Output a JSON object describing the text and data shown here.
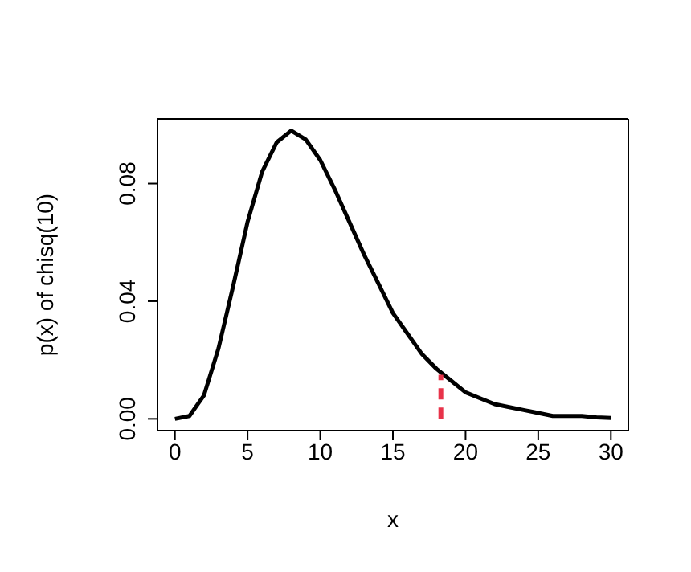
{
  "chart_data": {
    "type": "line",
    "xlabel": "x",
    "ylabel": "p(x) of chisq(10)",
    "x": [
      0,
      1,
      2,
      3,
      4,
      5,
      6,
      7,
      8,
      9,
      10,
      11,
      12,
      13,
      14,
      15,
      16,
      17,
      18,
      19,
      20,
      21,
      22,
      23,
      24,
      25,
      26,
      27,
      28,
      29,
      30
    ],
    "series": [
      {
        "color": "#000000",
        "values": [
          0,
          0.001,
          0.008,
          0.024,
          0.045,
          0.067,
          0.084,
          0.094,
          0.098,
          0.095,
          0.088,
          0.078,
          0.067,
          0.056,
          0.046,
          0.036,
          0.029,
          0.022,
          0.017,
          0.013,
          0.009,
          0.007,
          0.005,
          0.004,
          0.003,
          0.002,
          0.001,
          0.001,
          0.001,
          0.0005,
          0.0003
        ]
      },
      {
        "type": "line",
        "x": [
          18.3,
          18.3
        ],
        "values": [
          0,
          0.015
        ],
        "color": "#e8334a",
        "line_style": "dashed"
      }
    ],
    "xlim": [
      -1.2,
      31.2
    ],
    "ylim": [
      -0.004,
      0.102
    ],
    "xticks": [
      0,
      5,
      10,
      15,
      20,
      25,
      30
    ],
    "yticks": [
      {
        "value": 0,
        "label": "0.00"
      },
      {
        "value": 0.04,
        "label": "0.04"
      },
      {
        "value": 0.08,
        "label": "0.08"
      }
    ],
    "grid": false,
    "legend": false,
    "marker": "none",
    "line_style": "solid"
  }
}
